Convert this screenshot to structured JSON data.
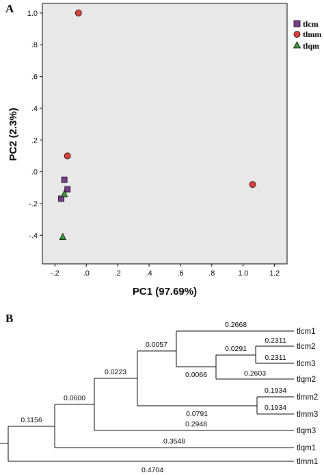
{
  "panel_a": {
    "letter": "A"
  },
  "panel_b": {
    "letter": "B"
  },
  "colors": {
    "tlcm": "#7a3d8c",
    "tlmm": "#e0403a",
    "tlqm": "#3f9a3a",
    "plot_bg": "#e8e8e8",
    "edge": "#000000"
  },
  "chart_data": [
    {
      "type": "scatter",
      "title": "",
      "xlabel": "PC1 (97.69%)",
      "ylabel": "PC2  (2.3%)",
      "xlim": [
        -0.28,
        1.28
      ],
      "ylim": [
        -0.58,
        1.06
      ],
      "xticks": [
        -0.2,
        0,
        0.2,
        0.4,
        0.6,
        0.8,
        1.0,
        1.2
      ],
      "xtick_labels": [
        "-.2",
        ".0",
        ".2",
        ".4",
        ".6",
        ".8",
        "1.0",
        "1.2"
      ],
      "yticks": [
        -0.4,
        -0.2,
        0,
        0.2,
        0.4,
        0.6,
        0.8,
        1.0
      ],
      "ytick_labels": [
        "-.4",
        "-.2",
        ".0",
        ".2",
        ".4",
        ".6",
        ".8",
        "1.0"
      ],
      "grid": false,
      "legend": "top-right",
      "series": [
        {
          "name": "tlcm",
          "marker": "square",
          "x": [
            -0.14,
            -0.12,
            -0.16
          ],
          "y": [
            -0.05,
            -0.11,
            -0.17
          ]
        },
        {
          "name": "tlmm",
          "marker": "circle",
          "x": [
            -0.05,
            -0.12,
            1.06
          ],
          "y": [
            1.0,
            0.1,
            -0.08
          ]
        },
        {
          "name": "tlqm",
          "marker": "triangle",
          "x": [
            -0.14,
            -0.15
          ],
          "y": [
            -0.14,
            -0.41
          ]
        }
      ]
    },
    {
      "type": "tree",
      "title": "",
      "leaves": [
        "tlcm1",
        "tlcm2",
        "tlcm3",
        "tlqm2",
        "tlmm2",
        "tlmm3",
        "tlqm3",
        "tlqm1",
        "tlmm1"
      ],
      "branch_lengths": [
        {
          "label": "0.2668",
          "from": "node_n5",
          "to": "tlcm1"
        },
        {
          "label": "0.2311",
          "from": "node_n1",
          "to": "tlcm2"
        },
        {
          "label": "0.2311",
          "from": "node_n1",
          "to": "tlcm3"
        },
        {
          "label": "0.0291",
          "from": "node_n3",
          "to": "node_n1"
        },
        {
          "label": "0.2603",
          "from": "node_n3",
          "to": "tlqm2"
        },
        {
          "label": "0.0066",
          "from": "node_n5",
          "to": "node_n3"
        },
        {
          "label": "0.0057",
          "from": "node_n6",
          "to": "node_n5"
        },
        {
          "label": "0.1934",
          "from": "node_n2",
          "to": "tlmm2"
        },
        {
          "label": "0.1934",
          "from": "node_n2",
          "to": "tlmm3"
        },
        {
          "label": "0.0791",
          "from": "node_n6",
          "to": "node_n2"
        },
        {
          "label": "0.0223",
          "from": "node_n7",
          "to": "node_n6"
        },
        {
          "label": "0.2948",
          "from": "node_n7",
          "to": "tlqm3"
        },
        {
          "label": "0.0600",
          "from": "node_n8",
          "to": "node_n7"
        },
        {
          "label": "0.3548",
          "from": "node_n8",
          "to": "tlqm1"
        },
        {
          "label": "0.1156",
          "from": "root",
          "to": "node_n8"
        },
        {
          "label": "0.4704",
          "from": "root",
          "to": "tlmm1"
        }
      ]
    }
  ]
}
